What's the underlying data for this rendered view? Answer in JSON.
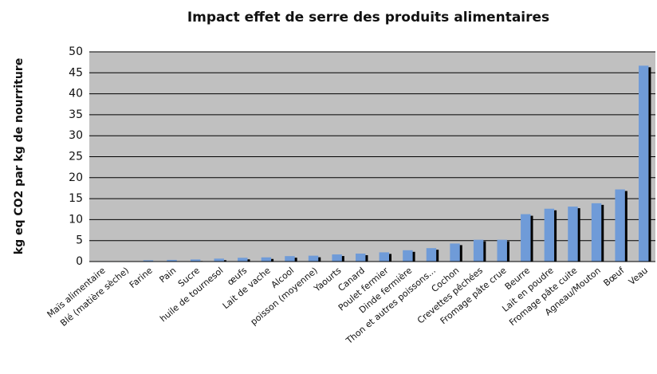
{
  "chart_data": {
    "type": "bar",
    "title": "Impact effet de serre des produits alimentaires",
    "y_label": "kg eq CO2 par kg de nourriture",
    "categories": [
      "Maïs alimentaire",
      "Blé (matière sèche)",
      "Farine",
      "Pain",
      "Sucre",
      "huile de tournesol",
      "œufs",
      "Lait de vache",
      "Alcool",
      "poisson (moyenne)",
      "Yaourts",
      "Canard",
      "Poulet fermier",
      "Dinde fermière",
      "Thon et autres poissons...",
      "Cochon",
      "Crevettes pêchées",
      "Fromage pâte crue",
      "Beurre",
      "Lait en poudre",
      "Fromage pâte cuite",
      "Agneau/Mouton",
      "Bœuf",
      "Veau"
    ],
    "values": [
      0.1,
      0.1,
      0.3,
      0.4,
      0.5,
      0.7,
      0.9,
      1.0,
      1.3,
      1.4,
      1.7,
      1.9,
      2.2,
      2.7,
      3.2,
      4.3,
      5.2,
      5.2,
      11.3,
      12.6,
      13.1,
      13.9,
      17.2,
      46.7
    ],
    "color": "#6f9bd8",
    "ylim": [
      0,
      50
    ],
    "yticks": [
      0,
      5,
      10,
      15,
      20,
      25,
      30,
      35,
      40,
      45,
      50
    ],
    "grid": true
  }
}
